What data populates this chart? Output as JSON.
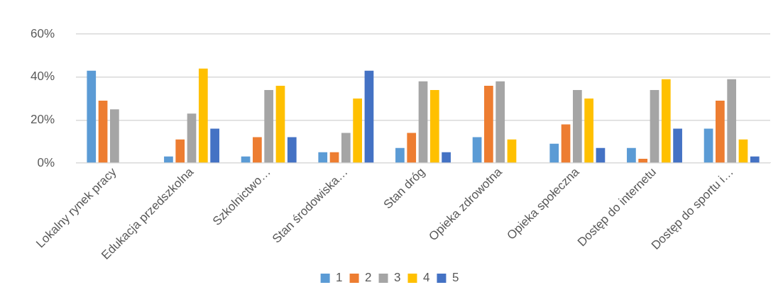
{
  "chart_data": {
    "type": "bar",
    "categories": [
      "Lokalny rynek pracy",
      "Edukacja przedszkolna",
      "Szkolnictwo…",
      "Stan środowiska…",
      "Stan dróg",
      "Opieka zdrowotna",
      "Opieka społeczna",
      "Dostęp do internetu",
      "Dostęp do sportu i…"
    ],
    "series": [
      {
        "name": "1",
        "color": "#5b9bd5",
        "values": [
          43,
          3,
          3,
          5,
          7,
          12,
          9,
          7,
          16
        ]
      },
      {
        "name": "2",
        "color": "#ed7d31",
        "values": [
          29,
          11,
          12,
          5,
          14,
          36,
          18,
          2,
          29
        ]
      },
      {
        "name": "3",
        "color": "#a5a5a5",
        "values": [
          25,
          23,
          34,
          14,
          38,
          38,
          34,
          34,
          39
        ]
      },
      {
        "name": "4",
        "color": "#ffc000",
        "values": [
          null,
          44,
          36,
          30,
          34,
          11,
          30,
          39,
          11
        ]
      },
      {
        "name": "5",
        "color": "#4472c4",
        "values": [
          null,
          16,
          12,
          43,
          5,
          null,
          7,
          16,
          3
        ]
      }
    ],
    "ylim": [
      0,
      60
    ],
    "yticks": [
      {
        "value": 0,
        "label": "0%"
      },
      {
        "value": 20,
        "label": "20%"
      },
      {
        "value": 40,
        "label": "40%"
      },
      {
        "value": 60,
        "label": "60%"
      }
    ],
    "grid": "y",
    "legend": "bottom"
  }
}
